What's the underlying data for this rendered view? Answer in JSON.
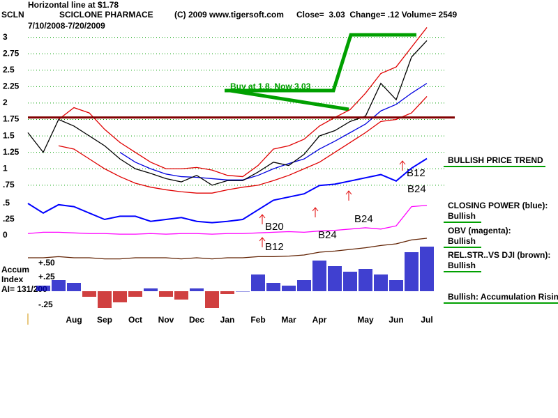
{
  "header": {
    "line1": "Horizontal line at $1.78",
    "ticker": "SCLN",
    "name": "SCICLONE PHARMACE",
    "copyright": "(C) 2009 www.tigersoft.com",
    "quote": "Close=  3.03  Change= .12 Volume= 2549",
    "range": "7/10/2008-7/20/2009"
  },
  "notes": [
    "BULLISH PRICE TREND",
    "CLOSING POWER (blue):",
    "Bullish",
    "OBV (magenta):",
    "Bullish",
    "REL.STR..VS DJI (brown):",
    "Bullish",
    "Bullish: Accumulation Rising"
  ],
  "accum_label": [
    "Accum",
    "Index",
    "AI= 131/200"
  ],
  "chart_data": [
    {
      "type": "line",
      "categories": [
        null,
        null,
        null,
        "Aug",
        null,
        "Sep",
        null,
        "Oct",
        null,
        "Nov",
        null,
        "Dec",
        null,
        "Jan",
        null,
        "Feb",
        null,
        "Mar",
        null,
        "Apr",
        null,
        null,
        "May",
        null,
        "Jun",
        null,
        "Jul"
      ],
      "ylim": [
        0.6,
        3.25
      ],
      "yticks": [
        {
          "value": 0.75,
          "label": ".75"
        },
        1,
        1.25,
        1.5,
        1.75,
        2,
        2.25,
        2.5,
        2.75,
        3
      ],
      "grid": true,
      "grid_color": "#00a000",
      "hline": {
        "value": 1.78,
        "color": "#800000"
      },
      "annotations": [
        "Buy at 1.8, Now 3.03",
        "B20",
        "B12",
        "B24",
        "B24",
        "B12",
        "B24"
      ],
      "series": [
        {
          "name": "Upper band",
          "color": "#e00000",
          "values": [
            null,
            null,
            1.75,
            1.93,
            1.85,
            1.6,
            1.4,
            1.25,
            1.1,
            1.0,
            1.0,
            1.02,
            0.98,
            0.9,
            0.88,
            1.05,
            1.3,
            1.35,
            1.45,
            1.65,
            1.78,
            1.9,
            2.15,
            2.45,
            2.55,
            2.85,
            3.15
          ]
        },
        {
          "name": "Lower band",
          "color": "#e00000",
          "values": [
            null,
            null,
            1.35,
            1.3,
            1.15,
            1.0,
            0.88,
            0.78,
            0.72,
            0.68,
            0.65,
            0.63,
            0.63,
            0.68,
            0.72,
            0.75,
            0.82,
            0.9,
            1.0,
            1.1,
            1.25,
            1.4,
            1.55,
            1.72,
            1.75,
            1.85,
            2.1
          ]
        },
        {
          "name": "Moving average",
          "color": "#0000e0",
          "values": [
            null,
            null,
            null,
            null,
            null,
            null,
            1.25,
            1.1,
            1.0,
            0.92,
            0.88,
            0.87,
            0.85,
            0.83,
            0.83,
            0.9,
            1.0,
            1.08,
            1.15,
            1.3,
            1.42,
            1.55,
            1.68,
            1.88,
            1.98,
            2.15,
            2.3
          ]
        },
        {
          "name": "Price",
          "color": "#000000",
          "values": [
            1.55,
            1.25,
            1.75,
            1.65,
            1.5,
            1.35,
            1.15,
            1.0,
            0.93,
            0.85,
            0.8,
            0.9,
            0.75,
            0.82,
            0.82,
            0.95,
            1.1,
            1.05,
            1.22,
            1.5,
            1.58,
            1.72,
            1.8,
            2.3,
            2.05,
            2.7,
            2.95
          ]
        }
      ]
    },
    {
      "type": "line",
      "ylim": [
        0,
        1.25
      ],
      "yticks": [
        0,
        {
          "value": 0.25,
          "label": ".25"
        },
        {
          "value": 0.5,
          "label": ".5"
        }
      ],
      "series": [
        {
          "name": "Closing Power",
          "color": "#0000ff",
          "values": [
            0.5,
            0.35,
            0.48,
            0.45,
            0.35,
            0.25,
            0.3,
            0.3,
            0.22,
            0.25,
            0.28,
            0.22,
            0.2,
            0.22,
            0.25,
            0.4,
            0.55,
            0.6,
            0.65,
            0.78,
            0.8,
            0.85,
            0.9,
            0.95,
            0.85,
            1.05,
            1.2
          ]
        },
        {
          "name": "OBV",
          "color": "#ff00ff",
          "values": [
            0.03,
            0.05,
            0.05,
            0.04,
            0.03,
            0.03,
            0.02,
            0.02,
            0.03,
            0.02,
            0.03,
            0.03,
            0.02,
            0.03,
            0.03,
            0.04,
            0.05,
            0.06,
            0.05,
            0.07,
            0.08,
            0.1,
            0.12,
            0.1,
            0.15,
            0.45,
            0.47
          ]
        }
      ]
    },
    {
      "type": "line",
      "ylim": [
        -0.4,
        1.0
      ],
      "yticks": [
        {
          "value": -0.25,
          "label": "-.25"
        },
        {
          "value": 0.25,
          "label": "+.25"
        },
        {
          "value": 0.5,
          "label": "+.50"
        }
      ],
      "series": [
        {
          "name": "Accumulation Index",
          "type": "bar",
          "color": "#0000c0",
          "negative_color": "#c00000",
          "values": [
            null,
            0.1,
            0.2,
            0.15,
            -0.1,
            -0.3,
            -0.2,
            -0.1,
            0.05,
            -0.1,
            -0.15,
            0.05,
            -0.3,
            -0.05,
            0.0,
            0.3,
            0.15,
            0.1,
            0.2,
            0.55,
            0.45,
            0.35,
            0.4,
            0.3,
            0.2,
            0.7,
            0.8
          ]
        },
        {
          "name": "Relative Strength",
          "color": "#602000",
          "values": [
            0.6,
            0.6,
            0.62,
            0.6,
            0.6,
            0.58,
            0.58,
            0.6,
            0.6,
            0.6,
            0.58,
            0.6,
            0.58,
            0.6,
            0.6,
            0.62,
            0.62,
            0.63,
            0.65,
            0.7,
            0.72,
            0.75,
            0.78,
            0.82,
            0.85,
            0.92,
            0.95
          ]
        }
      ]
    }
  ]
}
